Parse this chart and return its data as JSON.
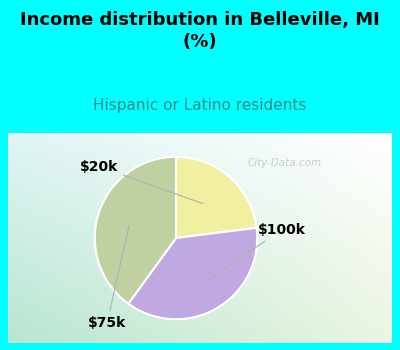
{
  "title": "Income distribution in Belleville, MI\n(%)",
  "subtitle": "Hispanic or Latino residents",
  "slices": [
    {
      "label": "$20k",
      "value": 23,
      "color": "#f0f0a0"
    },
    {
      "label": "$100k",
      "value": 37,
      "color": "#c0a8e0"
    },
    {
      "label": "$75k",
      "value": 40,
      "color": "#c0d0a0"
    }
  ],
  "startangle": 90,
  "title_fontsize": 13,
  "subtitle_fontsize": 11,
  "title_color": "#000000",
  "subtitle_color": "#3a8a8a",
  "bg_cyan": [
    0.0,
    1.0,
    1.0
  ],
  "chart_bg_topleft": [
    0.88,
    0.96,
    0.96
  ],
  "chart_bg_bottomleft": [
    0.72,
    0.9,
    0.82
  ],
  "chart_bg_topright": [
    1.0,
    1.0,
    1.0
  ],
  "watermark": "City-Data.com",
  "label_fontsize": 10,
  "label_color": "#000000",
  "label_fontweight": "bold"
}
